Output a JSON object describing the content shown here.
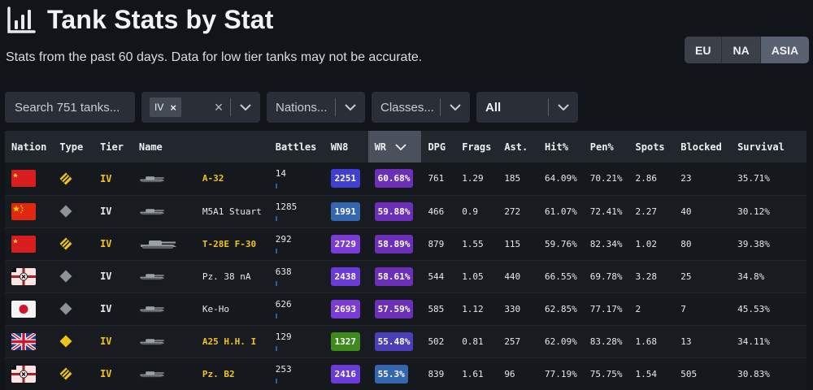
{
  "header": {
    "title": "Tank Stats by Stat",
    "subtitle": "Stats from the past 60 days. Data for low tier tanks may not be accurate.",
    "logo_icon": "bar-chart-icon"
  },
  "regions": [
    {
      "label": "EU",
      "active": false
    },
    {
      "label": "NA",
      "active": false
    },
    {
      "label": "ASIA",
      "active": true
    }
  ],
  "filters": {
    "search_placeholder": "Search 751 tanks...",
    "tier_chip": "IV",
    "nations_placeholder": "Nations...",
    "classes_placeholder": "Classes...",
    "type_value": "All"
  },
  "table": {
    "columns": [
      "Nation",
      "Type",
      "Tier",
      "Name",
      "Battles",
      "WN8",
      "WR",
      "DPG",
      "Frags",
      "Ast.",
      "Hit%",
      "Pen%",
      "Spots",
      "Blocked",
      "Survival"
    ],
    "sorted_column": "WR",
    "rows": [
      {
        "nation": "ussr",
        "type": "medium",
        "premium": true,
        "tier": "IV",
        "name": "A-32",
        "battles": "14",
        "wn8": "2251",
        "wn8_color": "#3f3fd2",
        "wr": "60.68%",
        "wr_color": "#6b2fb8",
        "dpg": "761",
        "frags": "1.29",
        "ast": "185",
        "hit": "64.09%",
        "pen": "70.21%",
        "spots": "2.86",
        "blocked": "23",
        "survival": "35.71%"
      },
      {
        "nation": "china",
        "type": "light",
        "premium": false,
        "tier": "IV",
        "name": "M5A1 Stuart",
        "battles": "1285",
        "wn8": "1991",
        "wn8_color": "#3566b0",
        "wr": "59.88%",
        "wr_color": "#6b2fb8",
        "dpg": "466",
        "frags": "0.9",
        "ast": "272",
        "hit": "61.07%",
        "pen": "72.41%",
        "spots": "2.27",
        "blocked": "40",
        "survival": "30.12%"
      },
      {
        "nation": "ussr",
        "type": "medium",
        "premium": true,
        "tier": "IV",
        "name": "T-28E F-30",
        "battles": "292",
        "wn8": "2729",
        "wn8_color": "#7a3bd6",
        "wr": "58.89%",
        "wr_color": "#6b2fb8",
        "dpg": "879",
        "frags": "1.55",
        "ast": "115",
        "hit": "59.76%",
        "pen": "82.34%",
        "spots": "1.02",
        "blocked": "80",
        "survival": "39.38%"
      },
      {
        "nation": "germany",
        "type": "light",
        "premium": false,
        "tier": "IV",
        "name": "Pz. 38 nA",
        "battles": "638",
        "wn8": "2438",
        "wn8_color": "#6a3bd6",
        "wr": "58.61%",
        "wr_color": "#6b2fb8",
        "dpg": "544",
        "frags": "1.05",
        "ast": "440",
        "hit": "66.55%",
        "pen": "69.78%",
        "spots": "3.28",
        "blocked": "25",
        "survival": "34.8%"
      },
      {
        "nation": "japan",
        "type": "light",
        "premium": false,
        "tier": "IV",
        "name": "Ke-Ho",
        "battles": "626",
        "wn8": "2693",
        "wn8_color": "#7a3bd6",
        "wr": "57.59%",
        "wr_color": "#6b2fb8",
        "dpg": "585",
        "frags": "1.12",
        "ast": "330",
        "hit": "62.85%",
        "pen": "77.17%",
        "spots": "2",
        "blocked": "7",
        "survival": "45.53%"
      },
      {
        "nation": "uk",
        "type": "light",
        "premium": true,
        "tier": "IV",
        "name": "A25 H.H. I",
        "battles": "129",
        "wn8": "1327",
        "wn8_color": "#3f8a1c",
        "wr": "55.48%",
        "wr_color": "#4b3fb8",
        "dpg": "502",
        "frags": "0.81",
        "ast": "257",
        "hit": "62.09%",
        "pen": "83.28%",
        "spots": "1.68",
        "blocked": "13",
        "survival": "34.11%"
      },
      {
        "nation": "germany",
        "type": "medium",
        "premium": true,
        "tier": "IV",
        "name": "Pz. B2",
        "battles": "253",
        "wn8": "2416",
        "wn8_color": "#6a3bd6",
        "wr": "55.3%",
        "wr_color": "#3566b0",
        "dpg": "839",
        "frags": "1.61",
        "ast": "96",
        "hit": "77.19%",
        "pen": "75.75%",
        "spots": "1.54",
        "blocked": "505",
        "survival": "30.83%"
      }
    ]
  }
}
